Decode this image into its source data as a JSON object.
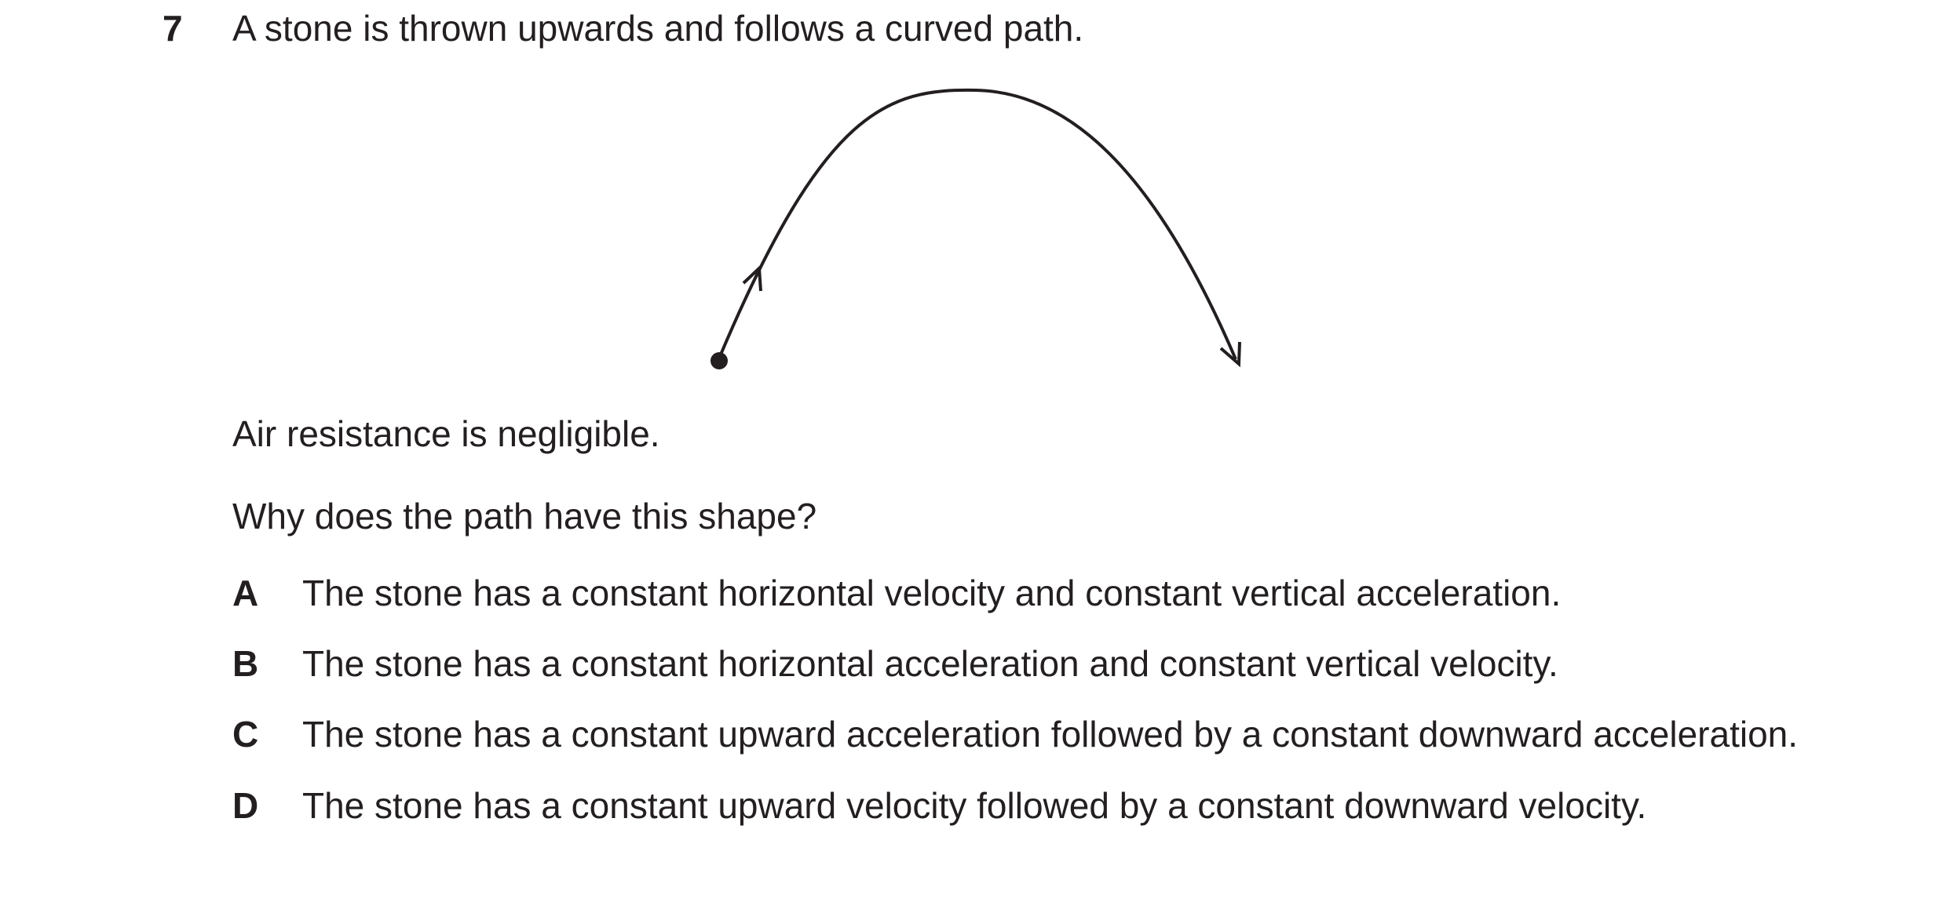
{
  "question": {
    "number": "7",
    "stem": "A stone is thrown upwards and follows a curved path."
  },
  "diagram": {
    "path_shape": "parabolic-arc",
    "start_marker": "filled-dot",
    "arrow_directions": [
      "up-right",
      "down-right"
    ]
  },
  "info": "Air resistance is negligible.",
  "prompt": "Why does the path have this shape?",
  "options": [
    {
      "letter": "A",
      "text": "The stone has a constant horizontal velocity and constant vertical acceleration."
    },
    {
      "letter": "B",
      "text": "The stone has a constant horizontal acceleration and constant vertical velocity."
    },
    {
      "letter": "C",
      "text": "The stone has a constant upward acceleration followed by a constant downward acceleration."
    },
    {
      "letter": "D",
      "text": "The stone has a constant upward velocity followed by a constant downward velocity."
    }
  ]
}
